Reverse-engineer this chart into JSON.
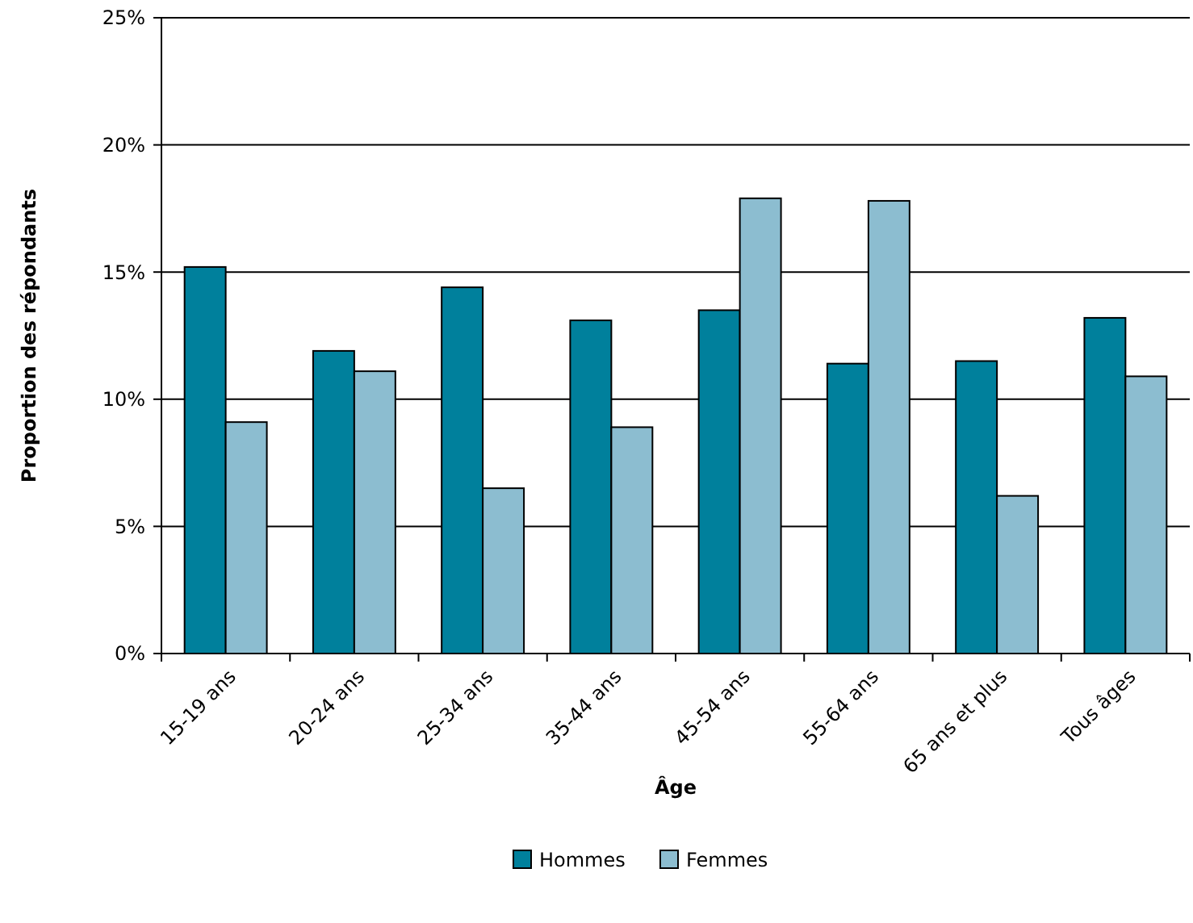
{
  "chart_data": {
    "type": "bar",
    "xlabel": "Âge",
    "ylabel": "Proportion des répondants",
    "categories": [
      "15-19 ans",
      "20-24 ans",
      "25-34 ans",
      "35-44 ans",
      "45-54 ans",
      "55-64 ans",
      "65 ans et plus",
      "Tous âges"
    ],
    "series": [
      {
        "name": "Hommes",
        "color": "#00809c",
        "values": [
          15.2,
          11.9,
          14.4,
          13.1,
          13.5,
          11.4,
          11.5,
          13.2
        ]
      },
      {
        "name": "Femmes",
        "color": "#8cbdd0",
        "values": [
          9.1,
          11.1,
          6.5,
          8.9,
          17.9,
          17.8,
          6.2,
          10.9
        ]
      }
    ],
    "ylim": [
      0,
      25
    ],
    "yticks": [
      {
        "value": 0,
        "label": "0%"
      },
      {
        "value": 5,
        "label": "5%"
      },
      {
        "value": 10,
        "label": "10%"
      },
      {
        "value": 15,
        "label": "15%"
      },
      {
        "value": 20,
        "label": "20%"
      },
      {
        "value": 25,
        "label": "25%"
      }
    ],
    "grid": "y",
    "legend": "bottom"
  }
}
